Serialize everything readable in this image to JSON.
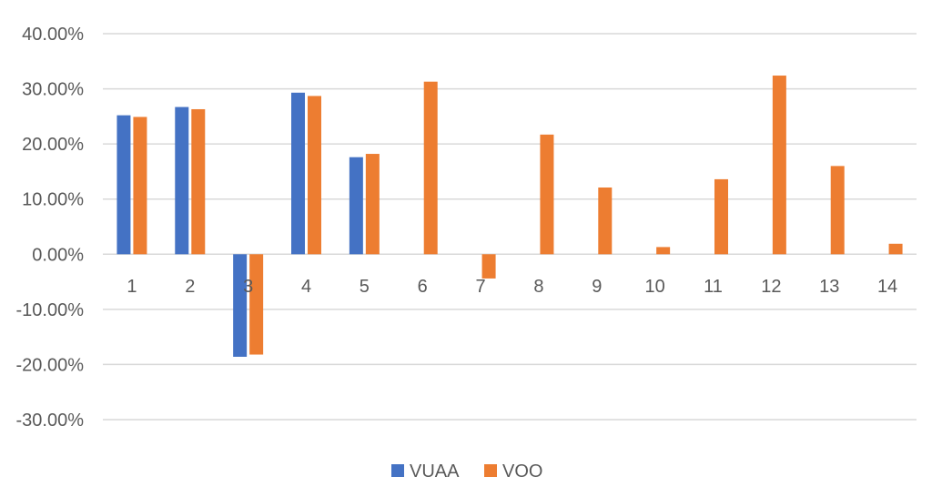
{
  "chart_data": {
    "type": "bar",
    "categories": [
      "1",
      "2",
      "3",
      "4",
      "5",
      "6",
      "7",
      "8",
      "9",
      "10",
      "11",
      "12",
      "13",
      "14"
    ],
    "series": [
      {
        "name": "VUAA",
        "color": "#4472c4",
        "values": [
          25.2,
          26.7,
          -18.6,
          29.3,
          17.6,
          null,
          null,
          null,
          null,
          null,
          null,
          null,
          null,
          null
        ]
      },
      {
        "name": "VOO",
        "color": "#ed7d31",
        "values": [
          24.9,
          26.3,
          -18.2,
          28.7,
          18.2,
          31.3,
          -4.4,
          21.7,
          12.1,
          1.3,
          13.6,
          32.4,
          16.0,
          1.9
        ]
      }
    ],
    "ylim": [
      -30,
      40
    ],
    "yticks": [
      40,
      30,
      20,
      10,
      0,
      -10,
      -20,
      -30
    ],
    "ytick_labels": [
      "40.00%",
      "30.00%",
      "20.00%",
      "10.00%",
      "0.00%",
      "-10.00%",
      "-20.00%",
      "-30.00%"
    ],
    "grid": true,
    "legend_position": "bottom"
  }
}
